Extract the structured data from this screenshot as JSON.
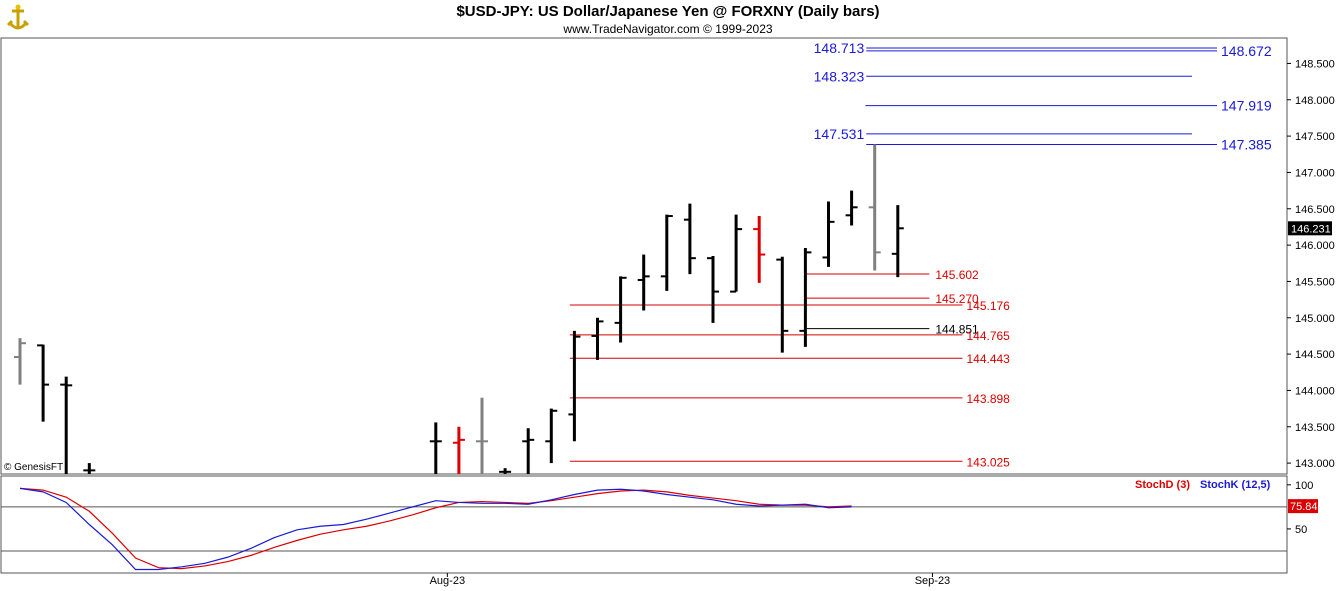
{
  "header": {
    "title": "$USD-JPY:  US Dollar/Japanese Yen @ FORXNY  (Daily bars)",
    "subtitle": "www.TradeNavigator.com © 1999-2023",
    "logo_icon": "gold-anchor-icon"
  },
  "copyright": "© GenesisFT",
  "colors": {
    "up_bar": "#000000",
    "grey_bar": "#808080",
    "red_bar": "#dd0000",
    "blue_level": "#1a1ad8",
    "red_level": "#d80000",
    "stochD": "#dd0000",
    "stochK": "#1a1ad8",
    "last_price_bg": "#000000",
    "stoch_value_bg": "#dd0000"
  },
  "chart_data": [
    {
      "type": "ohlc",
      "title": "$USD-JPY:  US Dollar/Japanese Yen @ FORXNY  (Daily bars)",
      "ylim": [
        142.85,
        148.85
      ],
      "y_ticks": [
        "148.500",
        "148.000",
        "147.500",
        "147.000",
        "146.500",
        "146.000",
        "145.500",
        "145.000",
        "144.500",
        "144.000",
        "143.500",
        "143.000"
      ],
      "y_tick_values": [
        148.5,
        148.0,
        147.5,
        147.0,
        146.5,
        146.0,
        145.5,
        145.0,
        144.5,
        144.0,
        143.5,
        143.0
      ],
      "x_ticks": [
        "Aug-23",
        "Sep-23"
      ],
      "x_tick_index": [
        18.5,
        39.5
      ],
      "last_price": "146.231",
      "bars": [
        {
          "i": 0,
          "h": 144.72,
          "l": 144.08,
          "o": 144.46,
          "c": 144.65,
          "color": "grey"
        },
        {
          "i": 1,
          "h": 144.63,
          "l": 143.57,
          "o": 144.62,
          "c": 144.08,
          "color": "black"
        },
        {
          "i": 2,
          "h": 144.19,
          "l": 142.85,
          "o": 144.08,
          "c": 144.07,
          "color": "black"
        },
        {
          "i": 3,
          "h": 143.0,
          "l": 142.85,
          "o": 142.9,
          "c": 142.9,
          "color": "black"
        },
        {
          "i": 18,
          "h": 143.56,
          "l": 142.85,
          "o": 143.3,
          "c": 143.3,
          "color": "black"
        },
        {
          "i": 19,
          "h": 143.5,
          "l": 142.85,
          "o": 143.28,
          "c": 143.32,
          "color": "red"
        },
        {
          "i": 20,
          "h": 143.9,
          "l": 142.85,
          "o": 143.3,
          "c": 143.3,
          "color": "grey"
        },
        {
          "i": 21,
          "h": 142.93,
          "l": 142.85,
          "o": 142.88,
          "c": 142.88,
          "color": "black"
        },
        {
          "i": 22,
          "h": 143.48,
          "l": 142.85,
          "o": 143.3,
          "c": 143.32,
          "color": "black"
        },
        {
          "i": 23,
          "h": 143.75,
          "l": 143.0,
          "o": 143.3,
          "c": 143.72,
          "color": "black"
        },
        {
          "i": 24,
          "h": 144.82,
          "l": 143.3,
          "o": 143.67,
          "c": 144.74,
          "color": "black"
        },
        {
          "i": 25,
          "h": 145.0,
          "l": 144.42,
          "o": 144.75,
          "c": 144.95,
          "color": "black"
        },
        {
          "i": 26,
          "h": 145.57,
          "l": 144.66,
          "o": 144.93,
          "c": 145.55,
          "color": "black"
        },
        {
          "i": 27,
          "h": 145.87,
          "l": 145.1,
          "o": 145.52,
          "c": 145.57,
          "color": "black"
        },
        {
          "i": 28,
          "h": 146.42,
          "l": 145.37,
          "o": 145.57,
          "c": 146.4,
          "color": "black"
        },
        {
          "i": 29,
          "h": 146.57,
          "l": 145.6,
          "o": 146.35,
          "c": 145.82,
          "color": "black"
        },
        {
          "i": 30,
          "h": 145.85,
          "l": 144.93,
          "o": 145.82,
          "c": 145.36,
          "color": "black"
        },
        {
          "i": 31,
          "h": 146.42,
          "l": 145.36,
          "o": 145.36,
          "c": 146.22,
          "color": "black"
        },
        {
          "i": 32,
          "h": 146.4,
          "l": 145.48,
          "o": 146.22,
          "c": 145.87,
          "color": "red"
        },
        {
          "i": 33,
          "h": 145.84,
          "l": 144.52,
          "o": 145.8,
          "c": 144.82,
          "color": "black"
        },
        {
          "i": 34,
          "h": 145.96,
          "l": 144.6,
          "o": 144.82,
          "c": 145.9,
          "color": "black"
        },
        {
          "i": 35,
          "h": 146.6,
          "l": 145.7,
          "o": 145.83,
          "c": 146.32,
          "color": "black"
        },
        {
          "i": 36,
          "h": 146.75,
          "l": 146.27,
          "o": 146.41,
          "c": 146.52,
          "color": "black"
        },
        {
          "i": 37,
          "h": 147.385,
          "l": 145.65,
          "o": 146.52,
          "c": 145.9,
          "color": "grey"
        },
        {
          "i": 38,
          "h": 146.55,
          "l": 145.56,
          "o": 145.88,
          "c": 146.231,
          "color": "black"
        }
      ]
    },
    {
      "type": "line",
      "title": "",
      "ylim": [
        0,
        110
      ],
      "y_ticks": [
        "100",
        "50"
      ],
      "y_tick_values": [
        100,
        50
      ],
      "reference_lines": [
        75,
        25
      ],
      "legend": [
        "StochD (3)",
        "StochK (12,5)"
      ],
      "last_value": "75.84",
      "series": [
        {
          "name": "StochD (3)",
          "color": "red",
          "values": [
            96,
            94,
            86,
            70,
            45,
            17,
            6,
            5,
            8,
            13,
            20,
            29,
            37,
            44,
            49,
            53,
            59,
            66,
            74,
            80,
            81,
            80,
            79,
            82,
            86,
            90,
            93,
            94,
            92,
            88,
            85,
            82,
            78,
            77,
            77,
            75,
            76
          ]
        },
        {
          "name": "StochK (12,5)",
          "color": "blue",
          "values": [
            96,
            92,
            80,
            55,
            32,
            4,
            4,
            7,
            11,
            18,
            28,
            40,
            49,
            53,
            55,
            61,
            68,
            75,
            82,
            80,
            79,
            79,
            78,
            83,
            89,
            94,
            95,
            93,
            89,
            86,
            83,
            78,
            76,
            77,
            78,
            74,
            75
          ]
        }
      ]
    }
  ],
  "levels": [
    {
      "value": 148.713,
      "label": "148.713",
      "side": "left",
      "color": "blue"
    },
    {
      "value": 148.672,
      "label": "148.672",
      "side": "right",
      "color": "blue"
    },
    {
      "value": 148.323,
      "label": "148.323",
      "side": "left",
      "color": "blue"
    },
    {
      "value": 147.919,
      "label": "147.919",
      "side": "right",
      "color": "blue"
    },
    {
      "value": 147.531,
      "label": "147.531",
      "side": "left",
      "color": "blue"
    },
    {
      "value": 147.385,
      "label": "147.385",
      "side": "right",
      "color": "blue"
    },
    {
      "value": 145.602,
      "label": "145.602",
      "side": "mid",
      "color": "red"
    },
    {
      "value": 145.27,
      "label": "145.270",
      "side": "mid",
      "color": "red"
    },
    {
      "value": 145.176,
      "label": "145.176",
      "side": "far",
      "color": "red"
    },
    {
      "value": 144.851,
      "label": "144.851",
      "side": "mid",
      "color": "black"
    },
    {
      "value": 144.765,
      "label": "144.765",
      "side": "far",
      "color": "red"
    },
    {
      "value": 144.443,
      "label": "144.443",
      "side": "far",
      "color": "red"
    },
    {
      "value": 143.898,
      "label": "143.898",
      "side": "far",
      "color": "red"
    },
    {
      "value": 143.025,
      "label": "143.025",
      "side": "far",
      "color": "red"
    }
  ]
}
